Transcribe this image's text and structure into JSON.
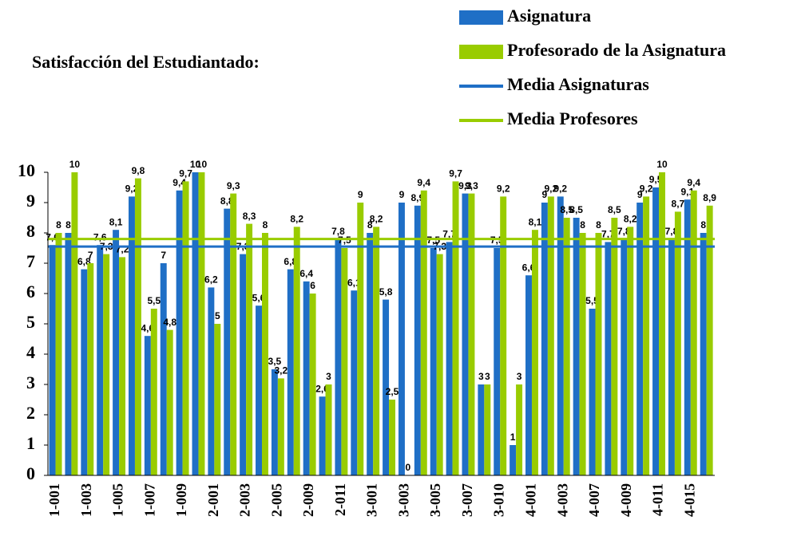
{
  "chart_data": {
    "type": "bar",
    "title": "Satisfacción del Estudiantado:",
    "categories": [
      "1-001",
      null,
      "1-003",
      null,
      "1-005",
      null,
      "1-007",
      null,
      "1-009",
      null,
      "2-001",
      null,
      "2-003",
      null,
      "2-005",
      null,
      "2-009",
      null,
      "2-011",
      null,
      "3-001",
      null,
      "3-003",
      null,
      "3-005",
      null,
      "3-007",
      null,
      "3-010",
      null,
      "4-001",
      null,
      "4-003",
      null,
      "4-007",
      null,
      "4-009",
      null,
      "4-011",
      null,
      "4-015",
      null
    ],
    "series": [
      {
        "name": "Asignatura",
        "color": "#1f6fc6",
        "values": [
          7.6,
          8,
          6.8,
          7.6,
          8.1,
          9.2,
          4.6,
          7,
          9.4,
          10,
          6.2,
          8.8,
          7.3,
          5.6,
          3.5,
          6.8,
          6.4,
          2.6,
          7.8,
          6.1,
          8,
          5.8,
          9,
          8.9,
          7.5,
          7.7,
          9.3,
          3,
          7.5,
          1,
          6.6,
          9,
          9.2,
          8.5,
          5.5,
          7.7,
          7.8,
          9,
          9.5,
          7.8,
          9.1,
          8
        ],
        "value_labels": [
          "7,6",
          "8",
          "6,8",
          "7,6",
          "8,1",
          "9,2",
          "4,6",
          "7",
          "9,4",
          "10",
          "6,2",
          "8,8",
          "7,3",
          "5,6",
          "3,5",
          "6,8",
          "6,4",
          "2,6",
          "7,8",
          "6,1",
          "8",
          "5,8",
          "9",
          "8,9",
          "7,5",
          "7,7",
          "9,3",
          "3",
          "7,5",
          "1",
          "6,6",
          "9",
          "9,2",
          "8,5",
          "5,5",
          "7,7",
          "7,8",
          "9",
          "9,5",
          "7,8",
          "9,1",
          "8"
        ]
      },
      {
        "name": "Profesorado de la Asignatura",
        "color": "#99cc00",
        "values": [
          8,
          10,
          7,
          7.3,
          7.2,
          9.8,
          5.5,
          4.8,
          9.7,
          10,
          5,
          9.3,
          8.3,
          8,
          3.2,
          8.2,
          6,
          3,
          7.5,
          9,
          8.2,
          2.5,
          0,
          9.4,
          7.3,
          9.7,
          9.3,
          3,
          9.2,
          3,
          8.1,
          9.2,
          8.5,
          8,
          8,
          8.5,
          8.2,
          9.2,
          10,
          8.7,
          9.4,
          8.9
        ],
        "value_labels": [
          "8",
          "10",
          "7",
          "7,3",
          "7,2",
          "9,8",
          "5,5",
          "4,8",
          "9,7",
          "10",
          "5",
          "9,3",
          "8,3",
          "8",
          "3,2",
          "8,2",
          "6",
          "3",
          "7,5",
          "9",
          "8,2",
          "2,5",
          "0",
          "9,4",
          "7,3",
          "9,7",
          "9,3",
          "3",
          "9,2",
          "3",
          "8,1",
          "9,2",
          "8,5",
          "8",
          "8",
          "8,5",
          "8,2",
          "9,2",
          "10",
          "8,7",
          "9,4",
          "8,9"
        ]
      }
    ],
    "reference_lines": [
      {
        "name": "Media Asignaturas",
        "color": "#1f6fc6",
        "value": 7.55
      },
      {
        "name": "Media Profesores",
        "color": "#99cc00",
        "value": 7.8
      }
    ],
    "ylim": [
      0,
      10
    ],
    "yticks": [
      0,
      1,
      2,
      3,
      4,
      5,
      6,
      7,
      8,
      9,
      10
    ]
  }
}
